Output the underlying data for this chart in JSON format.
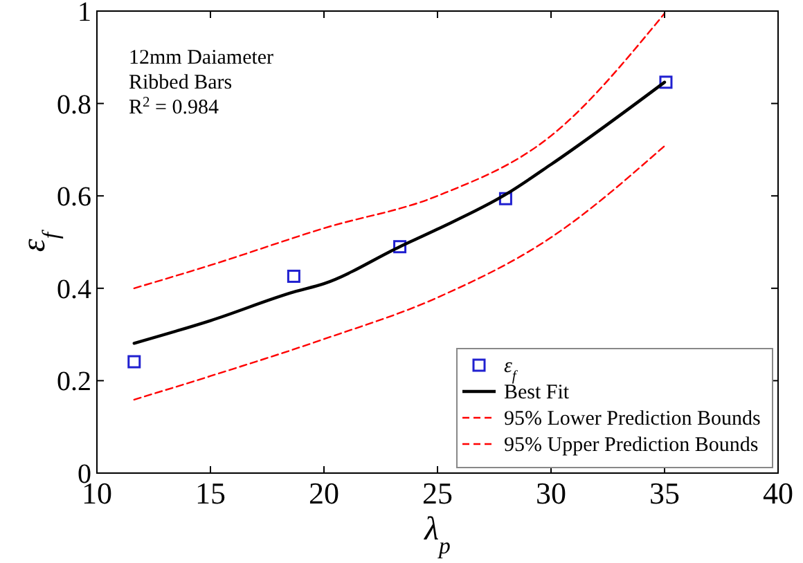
{
  "chart_data": {
    "type": "scatter",
    "xlabel": "λ$_{p}$",
    "ylabel": "ε$_{f}$",
    "annotations": [
      "12mm Daiameter",
      "Ribbed Bars",
      "R$^{2}$ = 0.984"
    ],
    "xlim": [
      10,
      40
    ],
    "xticks": [
      10,
      15,
      20,
      25,
      30,
      35,
      40
    ],
    "ylim": [
      0,
      1
    ],
    "yticks": [
      0,
      0.2,
      0.4,
      0.6,
      0.8,
      1
    ],
    "grid": false,
    "legend": "bottom right",
    "series": [
      {
        "name": "ε$_{f}$",
        "marker": "square",
        "color": "#2020d0",
        "x": [
          11.64,
          18.67,
          23.34,
          28.0,
          35.06
        ],
        "values": [
          0.241,
          0.426,
          0.49,
          0.594,
          0.846
        ]
      },
      {
        "name": "Best Fit",
        "type": "line",
        "line_style": "solid",
        "color": "#000000",
        "x": [
          11.64,
          15,
          18.67,
          20,
          23.34,
          25,
          28,
          30,
          35
        ],
        "values": [
          0.281,
          0.33,
          0.392,
          0.41,
          0.49,
          0.528,
          0.603,
          0.668,
          0.846
        ]
      },
      {
        "name": "95% Lower Prediction Bounds",
        "type": "line",
        "line_style": "dashed",
        "color": "#ff0000",
        "x": [
          11.64,
          15,
          20,
          25,
          30,
          35
        ],
        "values": [
          0.159,
          0.21,
          0.29,
          0.38,
          0.51,
          0.708
        ]
      },
      {
        "name": "95% Upper Prediction Bounds",
        "type": "line",
        "line_style": "dashed",
        "color": "#ff0000",
        "x": [
          11.64,
          15,
          20,
          25,
          30,
          35
        ],
        "values": [
          0.4,
          0.45,
          0.53,
          0.6,
          0.73,
          0.995
        ]
      }
    ]
  }
}
